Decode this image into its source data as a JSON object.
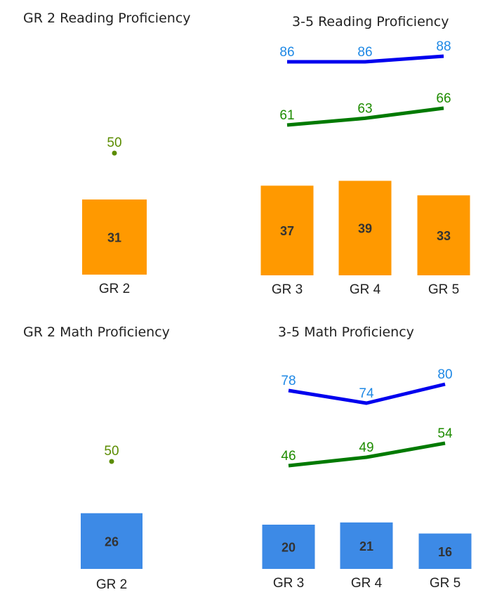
{
  "chart_data": [
    {
      "id": "gr2-reading",
      "type": "bar",
      "title": "GR 2 Reading Proficiency",
      "categories": [
        "GR 2"
      ],
      "series": [
        {
          "kind": "bar",
          "values": [
            31
          ],
          "color": "#FF9900"
        },
        {
          "kind": "point",
          "values": [
            50
          ],
          "color": "#5B8C00"
        }
      ],
      "ylim": [
        0,
        100
      ],
      "grid": false,
      "legend": "none"
    },
    {
      "id": "gr35-reading",
      "type": "bar",
      "title": "3-5 Reading Proficiency",
      "categories": [
        "GR 3",
        "GR 4",
        "GR 5"
      ],
      "series": [
        {
          "kind": "bar",
          "values": [
            37,
            39,
            33
          ],
          "color": "#FF9900"
        },
        {
          "kind": "line",
          "values": [
            86,
            86,
            88
          ],
          "color": "#0000EE",
          "label_color": "#1E88E5"
        },
        {
          "kind": "line",
          "values": [
            61,
            63,
            66
          ],
          "color": "#007A00",
          "label_color": "#1E8C00"
        }
      ],
      "ylim": [
        0,
        100
      ],
      "grid": false,
      "legend": "none"
    },
    {
      "id": "gr2-math",
      "type": "bar",
      "title": "GR 2 Math Proficiency",
      "categories": [
        "GR 2"
      ],
      "series": [
        {
          "kind": "bar",
          "values": [
            26
          ],
          "color": "#3D8AE6"
        },
        {
          "kind": "point",
          "values": [
            50
          ],
          "color": "#5B8C00"
        }
      ],
      "ylim": [
        0,
        100
      ],
      "grid": false,
      "legend": "none"
    },
    {
      "id": "gr35-math",
      "type": "bar",
      "title": "3-5 Math Proficiency",
      "categories": [
        "GR 3",
        "GR 4",
        "GR 5"
      ],
      "series": [
        {
          "kind": "bar",
          "values": [
            20,
            21,
            16
          ],
          "color": "#3D8AE6"
        },
        {
          "kind": "line",
          "values": [
            78,
            74,
            80
          ],
          "color": "#0000EE",
          "label_color": "#1E88E5"
        },
        {
          "kind": "line",
          "values": [
            46,
            49,
            54
          ],
          "color": "#007A00",
          "label_color": "#1E8C00"
        }
      ],
      "ylim": [
        0,
        100
      ],
      "grid": false,
      "legend": "none"
    }
  ]
}
